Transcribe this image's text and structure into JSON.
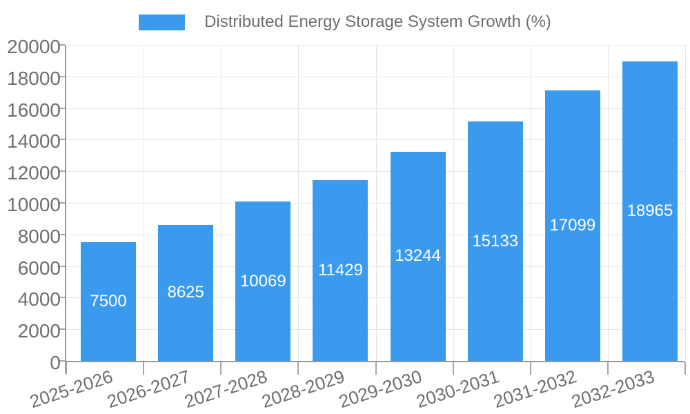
{
  "legend": {
    "label": "Distributed Energy Storage System Growth (%)"
  },
  "chart_data": {
    "type": "bar",
    "title": "Distributed Energy Storage System Growth (%)",
    "categories": [
      "2025-2026",
      "2026-2027",
      "2027-2028",
      "2028-2029",
      "2029-2030",
      "2030-2031",
      "2031-2032",
      "2032-2033"
    ],
    "values": [
      7500,
      8625,
      10069,
      11429,
      13244,
      15133,
      17099,
      18965
    ],
    "value_labels": [
      "7500",
      "8625",
      "10069",
      "11429",
      "13244",
      "15133",
      "17099",
      "18965"
    ],
    "xlabel": "",
    "ylabel": "",
    "ylim": [
      0,
      20000
    ],
    "ytick_step": 2000,
    "ytick_labels": [
      "0",
      "2000",
      "4000",
      "6000",
      "8000",
      "10000",
      "12000",
      "14000",
      "16000",
      "18000",
      "20000"
    ],
    "grid": "on",
    "legend_position": "top-center",
    "colors": {
      "bar": "#3A9AEE",
      "bar_label_text": "#FFFFFF",
      "gridline": "#E5E5E5",
      "axis_line": "#999999",
      "tick_mark": "#A6A6A6",
      "tick_text": "#6E6E6E",
      "background": "#FFFFFF"
    }
  }
}
